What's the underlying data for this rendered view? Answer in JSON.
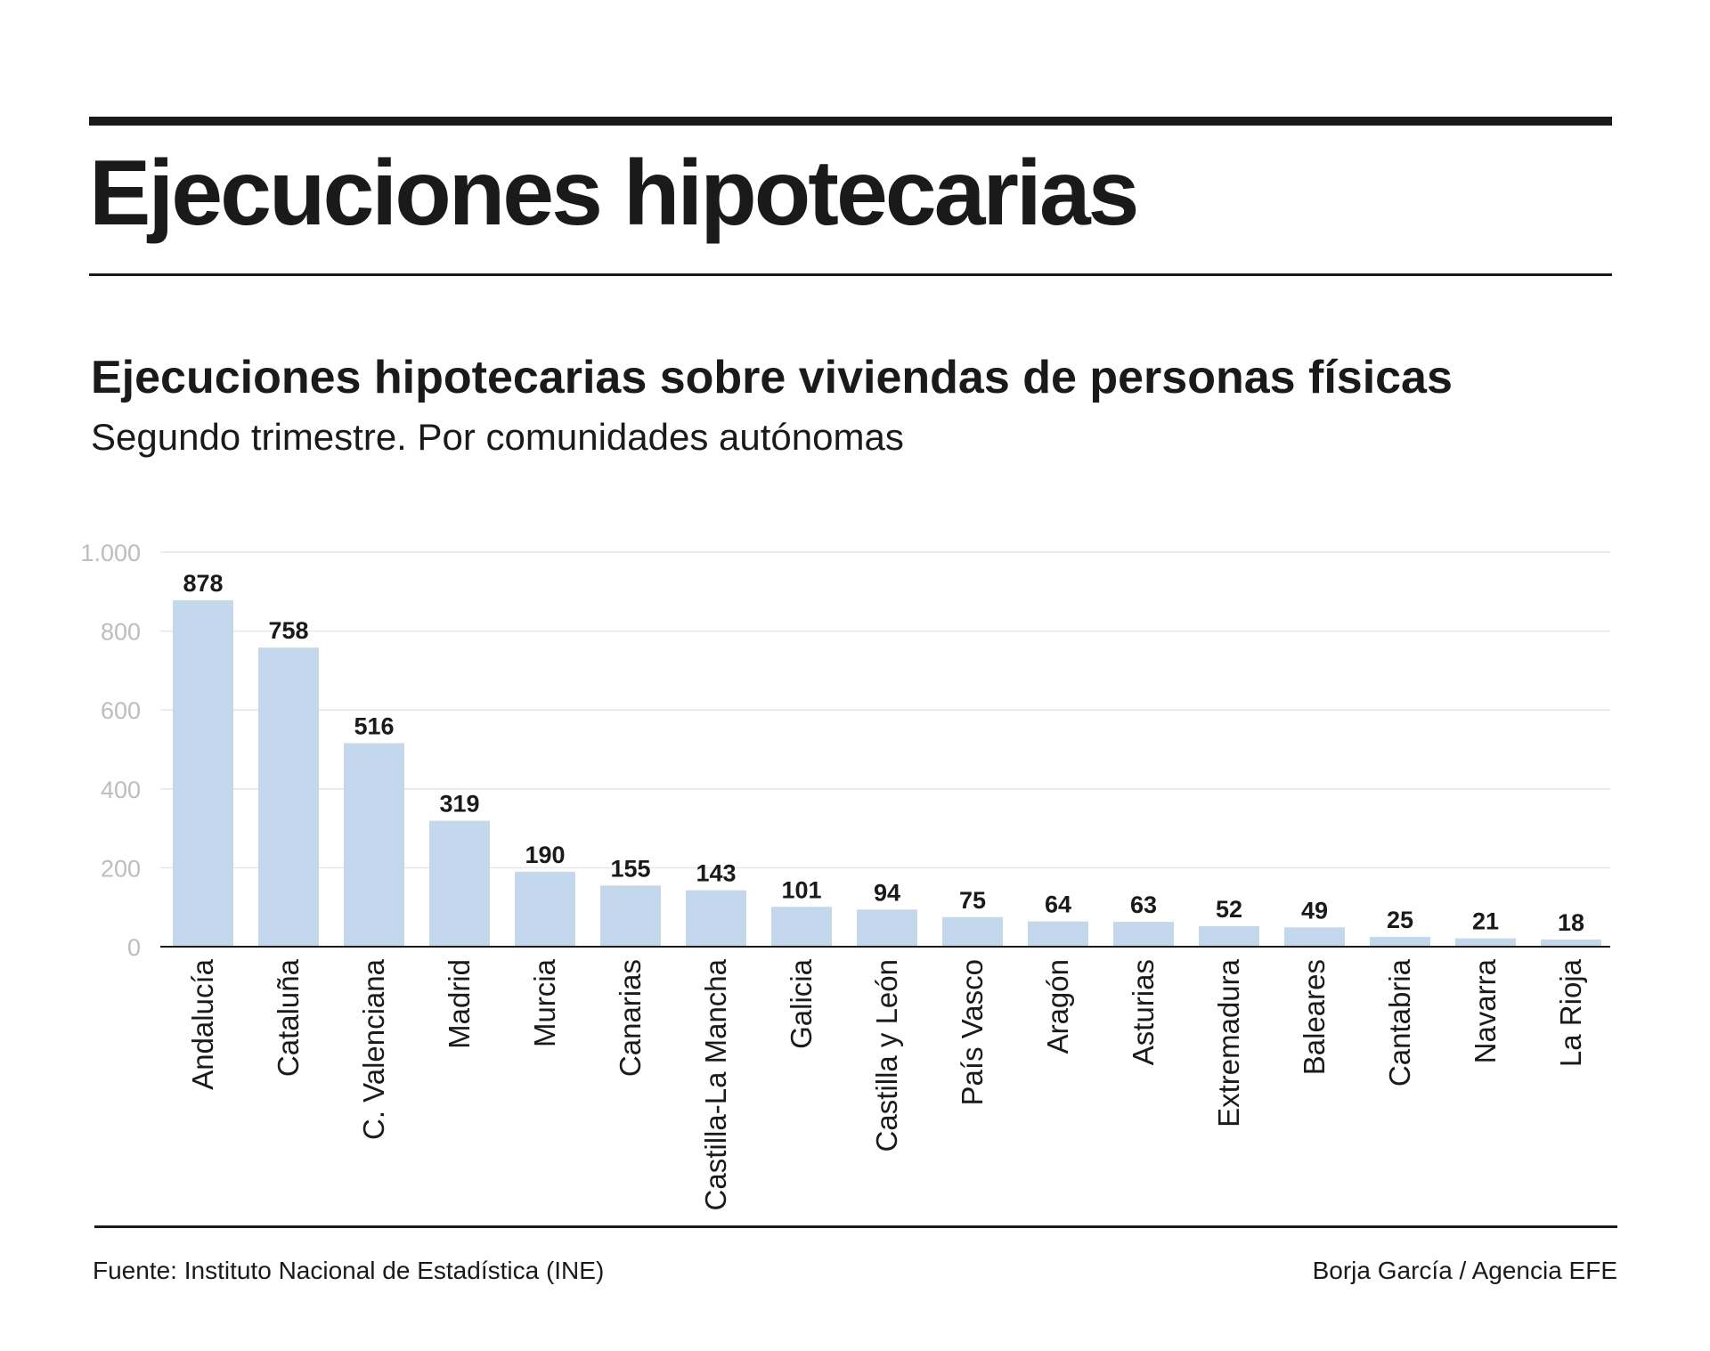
{
  "header": {
    "title": "Ejecuciones hipotecarias"
  },
  "chart_data": {
    "type": "bar",
    "title": "Ejecuciones hipotecarias sobre viviendas de personas físicas",
    "subtitle": "Segundo trimestre. Por comunidades autónomas",
    "categories": [
      "Andalucía",
      "Cataluña",
      "C. Valenciana",
      "Madrid",
      "Murcia",
      "Canarias",
      "Castilla-La Mancha",
      "Galicia",
      "Castilla y León",
      "País Vasco",
      "Aragón",
      "Asturias",
      "Extremadura",
      "Baleares",
      "Cantabria",
      "Navarra",
      "La Rioja"
    ],
    "values": [
      878,
      758,
      516,
      319,
      190,
      155,
      143,
      101,
      94,
      75,
      64,
      63,
      52,
      49,
      25,
      21,
      18
    ],
    "ylim": [
      0,
      1000
    ],
    "yticks": [
      0,
      200,
      400,
      600,
      800,
      1000
    ],
    "ytick_labels": [
      "0",
      "200",
      "400",
      "600",
      "800",
      "1.000"
    ],
    "grid": true,
    "data_labels": true,
    "xlabel": "",
    "ylabel": "",
    "colors": {
      "bar": "#c3d8ec",
      "grid": "#e6e6e6",
      "axis": "#1a1a1a",
      "tick_label": "#bdbdbd",
      "value_label": "#1a1a1a",
      "category_label": "#1a1a1a"
    }
  },
  "footer": {
    "source": "Fuente: Instituto Nacional de Estadística (INE)",
    "credit": "Borja García / Agencia EFE"
  }
}
